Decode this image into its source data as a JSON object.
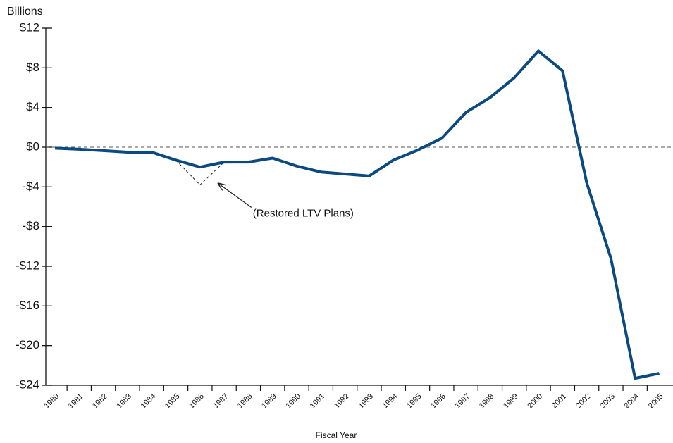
{
  "chart_data": {
    "type": "line",
    "y_label": "Billions",
    "x_label": "Fiscal Year",
    "annotation": "(Restored LTV Plans)",
    "categories": [
      "1980",
      "1981",
      "1982",
      "1983",
      "1984",
      "1985",
      "1986",
      "1987",
      "1988",
      "1989",
      "1990",
      "1991",
      "1992",
      "1993",
      "1994",
      "1995",
      "1996",
      "1997",
      "1998",
      "1999",
      "2000",
      "2001",
      "2002",
      "2003",
      "2004",
      "2005"
    ],
    "series": [
      {
        "color": "#0b4a80",
        "values": [
          -0.1,
          -0.2,
          -0.35,
          -0.5,
          -0.5,
          -1.3,
          -2.0,
          -1.5,
          -1.5,
          -1.1,
          -1.9,
          -2.5,
          -2.7,
          -2.9,
          -1.3,
          -0.3,
          0.9,
          3.5,
          5.0,
          7.0,
          9.7,
          7.7,
          -3.6,
          -11.2,
          -23.3,
          -22.8
        ]
      },
      {
        "color": "#222222",
        "dashed": true,
        "values": [
          null,
          null,
          null,
          null,
          null,
          -1.3,
          -3.8,
          -1.5,
          null,
          null,
          null,
          null,
          null,
          null,
          null,
          null,
          null,
          null,
          null,
          null,
          null,
          null,
          null,
          null,
          null,
          null
        ]
      }
    ],
    "ylim": [
      -24,
      12
    ],
    "yticks": [
      {
        "value": 12,
        "label": "$12"
      },
      {
        "value": 8,
        "label": "$8"
      },
      {
        "value": 4,
        "label": "$4"
      },
      {
        "value": 0,
        "label": "$0"
      },
      {
        "value": -4,
        "label": "-$4"
      },
      {
        "value": -8,
        "label": "-$8"
      },
      {
        "value": -12,
        "label": "-$12"
      },
      {
        "value": -16,
        "label": "-$16"
      },
      {
        "value": -20,
        "label": "-$20"
      },
      {
        "value": -24,
        "label": "-$24"
      }
    ]
  }
}
